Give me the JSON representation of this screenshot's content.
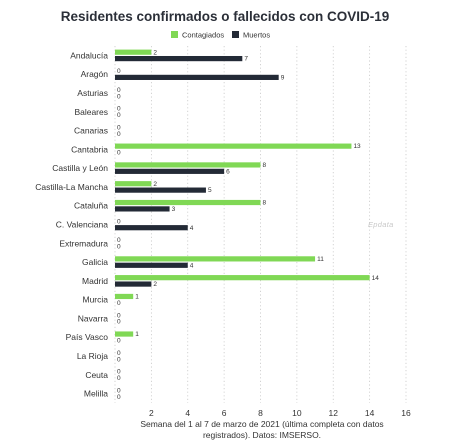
{
  "title": "Residentes confirmados o fallecidos con COVID-19",
  "watermark": "Epdata",
  "x_axis_title": "Semana del 1 al 7 de marzo de 2021 (última completa con datos registrados). Datos: IMSERSO.",
  "colors": {
    "contagiados": "#80d855",
    "muertos": "#232a36"
  },
  "chart_data": {
    "type": "bar",
    "orientation": "horizontal",
    "title": "Residentes confirmados o fallecidos con COVID-19",
    "categories": [
      "Andalucía",
      "Aragón",
      "Asturias",
      "Baleares",
      "Canarias",
      "Cantabria",
      "Castilla y León",
      "Castilla-La Mancha",
      "Cataluña",
      "C. Valenciana",
      "Extremadura",
      "Galicia",
      "Madrid",
      "Murcia",
      "Navarra",
      "País Vasco",
      "La Rioja",
      "Ceuta",
      "Melilla"
    ],
    "series": [
      {
        "name": "Contagiados",
        "color": "#80d855",
        "values": [
          2,
          0,
          0,
          0,
          0,
          13,
          8,
          2,
          8,
          0,
          0,
          11,
          14,
          1,
          0,
          1,
          0,
          0,
          0
        ]
      },
      {
        "name": "Muertos",
        "color": "#232a36",
        "values": [
          7,
          9,
          0,
          0,
          0,
          0,
          6,
          5,
          3,
          4,
          0,
          4,
          2,
          0,
          0,
          0,
          0,
          0,
          0
        ]
      }
    ],
    "xlim": [
      0,
      16
    ],
    "xticks": [
      2,
      4,
      6,
      8,
      10,
      12,
      14,
      16
    ],
    "xlabel": "Semana del 1 al 7 de marzo de 2021 (última completa con datos registrados). Datos: IMSERSO.",
    "legend_position": "top",
    "grid": "vertical dotted",
    "data_labels": true
  }
}
